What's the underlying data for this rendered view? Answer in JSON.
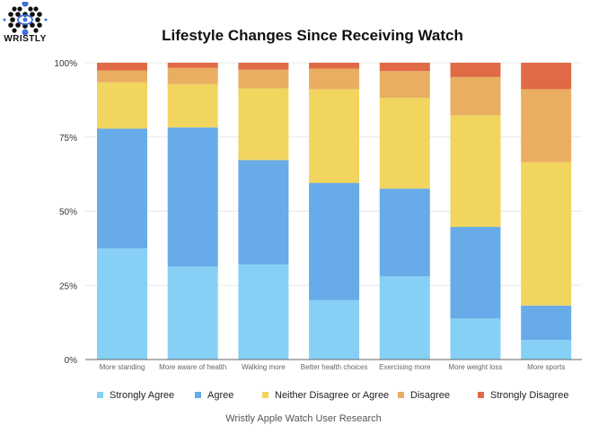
{
  "logo": {
    "text": "WRISTLY"
  },
  "chart_data": {
    "type": "bar",
    "stacked": true,
    "title": "Lifestyle Changes Since Receiving Watch",
    "source": "Wristly Apple Watch User Research",
    "categories": [
      "More standing",
      "More aware of health",
      "Walking more",
      "Better health choices",
      "Exercising more",
      "More weight loss",
      "More sports"
    ],
    "series": [
      {
        "name": "Strongly Agree",
        "color": "#87d0f5",
        "values": [
          37.4,
          31.3,
          32.0,
          20.0,
          28.0,
          13.9,
          6.6
        ]
      },
      {
        "name": "Agree",
        "color": "#67abe8",
        "values": [
          40.4,
          46.9,
          35.2,
          39.5,
          29.6,
          30.8,
          11.6
        ]
      },
      {
        "name": "Neither Disagree or Agree",
        "color": "#f1d55f",
        "values": [
          15.6,
          14.6,
          24.2,
          31.6,
          30.6,
          37.6,
          48.3
        ]
      },
      {
        "name": "Disagree",
        "color": "#e9ae62",
        "values": [
          4.0,
          5.5,
          6.3,
          6.9,
          9.0,
          12.9,
          24.6
        ]
      },
      {
        "name": "Strongly Disagree",
        "color": "#e06a45",
        "values": [
          2.6,
          1.7,
          2.3,
          2.0,
          2.8,
          4.8,
          8.9
        ]
      }
    ],
    "ylim": [
      0,
      100
    ],
    "yticks": [
      "0%",
      "25%",
      "50%",
      "75%",
      "100%"
    ],
    "grid": true,
    "legend": "bottom"
  }
}
